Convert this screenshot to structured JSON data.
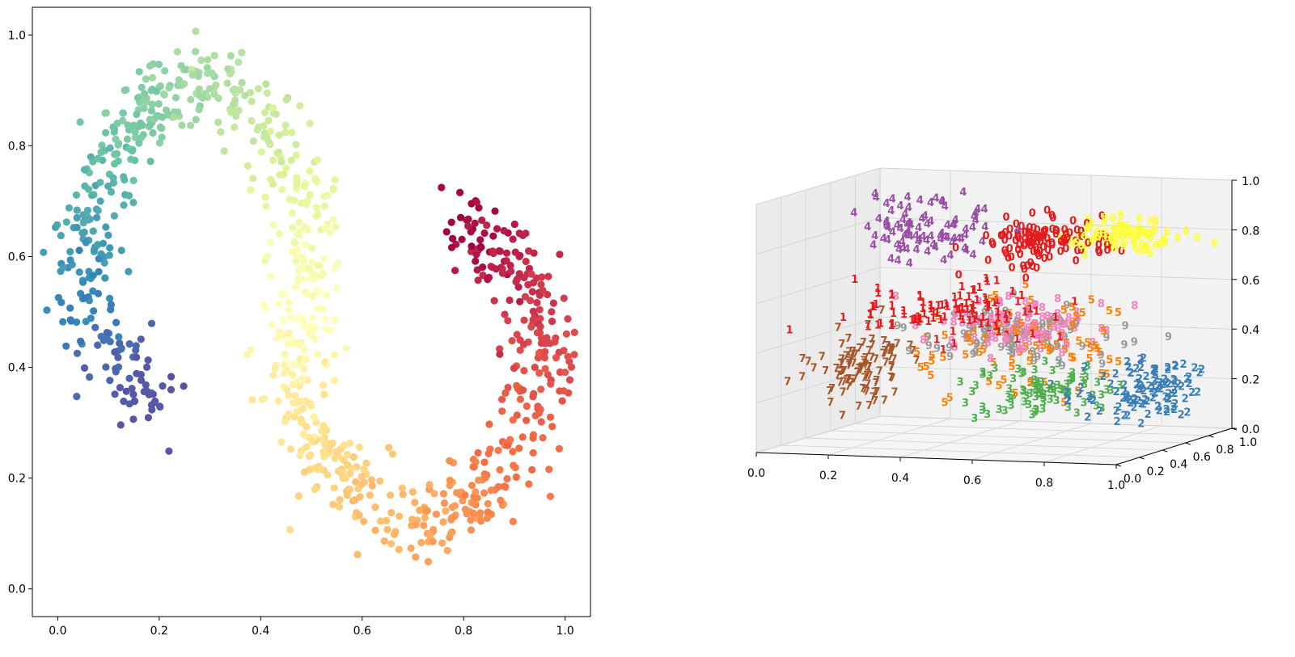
{
  "figure": {
    "description_free": true
  },
  "chart_data": [
    {
      "type": "scatter",
      "title": "",
      "xlabel": "",
      "ylabel": "",
      "xlim": [
        -0.05,
        1.05
      ],
      "ylim": [
        -0.05,
        1.05
      ],
      "grid": false,
      "xticks": [
        "0.0",
        "0.2",
        "0.4",
        "0.6",
        "0.8",
        "1.0"
      ],
      "yticks": [
        "0.0",
        "0.2",
        "0.4",
        "0.6",
        "0.8",
        "1.0"
      ],
      "colormap": "Spectral",
      "manifold_path": [
        [
          0.19,
          0.34
        ],
        [
          0.15,
          0.37
        ],
        [
          0.11,
          0.41
        ],
        [
          0.08,
          0.46
        ],
        [
          0.06,
          0.52
        ],
        [
          0.06,
          0.58
        ],
        [
          0.06,
          0.64
        ],
        [
          0.08,
          0.71
        ],
        [
          0.1,
          0.77
        ],
        [
          0.13,
          0.82
        ],
        [
          0.17,
          0.86
        ],
        [
          0.21,
          0.89
        ],
        [
          0.26,
          0.91
        ],
        [
          0.31,
          0.91
        ],
        [
          0.36,
          0.89
        ],
        [
          0.4,
          0.86
        ],
        [
          0.44,
          0.82
        ],
        [
          0.47,
          0.77
        ],
        [
          0.49,
          0.71
        ],
        [
          0.5,
          0.65
        ],
        [
          0.49,
          0.59
        ],
        [
          0.48,
          0.53
        ],
        [
          0.47,
          0.47
        ],
        [
          0.46,
          0.41
        ],
        [
          0.47,
          0.35
        ],
        [
          0.49,
          0.29
        ],
        [
          0.52,
          0.24
        ],
        [
          0.55,
          0.2
        ],
        [
          0.6,
          0.16
        ],
        [
          0.65,
          0.13
        ],
        [
          0.71,
          0.12
        ],
        [
          0.77,
          0.13
        ],
        [
          0.82,
          0.16
        ],
        [
          0.86,
          0.2
        ],
        [
          0.9,
          0.25
        ],
        [
          0.93,
          0.31
        ],
        [
          0.95,
          0.37
        ],
        [
          0.96,
          0.43
        ],
        [
          0.95,
          0.49
        ],
        [
          0.92,
          0.55
        ],
        [
          0.88,
          0.6
        ],
        [
          0.83,
          0.64
        ],
        [
          0.78,
          0.66
        ]
      ],
      "point_count": 1000,
      "noise": 0.035
    },
    {
      "type": "scatter3d",
      "title": "",
      "xlim": [
        0,
        1
      ],
      "ylim": [
        0,
        1
      ],
      "zlim": [
        0,
        1
      ],
      "xticks": [
        "0.0",
        "0.2",
        "0.4",
        "0.6",
        "0.8",
        "1.0"
      ],
      "yticks": [
        "0.0",
        "0.2",
        "0.4",
        "0.6",
        "0.8",
        "1.0"
      ],
      "zticks": [
        "0.0",
        "0.2",
        "0.4",
        "0.6",
        "0.8",
        "1.0"
      ],
      "marker": "digit-text",
      "classes": [
        {
          "label": "0",
          "color": "#e41a1c",
          "center": [
            0.6,
            0.6,
            0.78
          ],
          "spread": [
            0.16,
            0.18,
            0.1
          ],
          "count": 120
        },
        {
          "label": "1",
          "color": "#e41a1c",
          "center": [
            0.45,
            0.35,
            0.52
          ],
          "spread": [
            0.28,
            0.2,
            0.1
          ],
          "count": 110
        },
        {
          "label": "2",
          "color": "#377eb8",
          "center": [
            0.95,
            0.45,
            0.22
          ],
          "spread": [
            0.18,
            0.25,
            0.12
          ],
          "count": 110
        },
        {
          "label": "3",
          "color": "#4daf4a",
          "center": [
            0.65,
            0.45,
            0.2
          ],
          "spread": [
            0.2,
            0.25,
            0.12
          ],
          "count": 90
        },
        {
          "label": "4",
          "color": "#984ea3",
          "center": [
            0.3,
            0.55,
            0.82
          ],
          "spread": [
            0.18,
            0.15,
            0.14
          ],
          "count": 90
        },
        {
          "label": "5",
          "color": "#ff7f00",
          "center": [
            0.6,
            0.45,
            0.4
          ],
          "spread": [
            0.3,
            0.3,
            0.2
          ],
          "count": 90
        },
        {
          "label": "6",
          "color": "#ffff33",
          "center": [
            0.8,
            0.7,
            0.8
          ],
          "spread": [
            0.15,
            0.15,
            0.08
          ],
          "count": 90
        },
        {
          "label": "7",
          "color": "#a65628",
          "center": [
            0.18,
            0.3,
            0.3
          ],
          "spread": [
            0.12,
            0.22,
            0.15
          ],
          "count": 100
        },
        {
          "label": "8",
          "color": "#f781bf",
          "center": [
            0.55,
            0.5,
            0.45
          ],
          "spread": [
            0.22,
            0.2,
            0.1
          ],
          "count": 100
        },
        {
          "label": "9",
          "color": "#999999",
          "center": [
            0.55,
            0.5,
            0.42
          ],
          "spread": [
            0.3,
            0.25,
            0.12
          ],
          "count": 90
        }
      ]
    }
  ]
}
